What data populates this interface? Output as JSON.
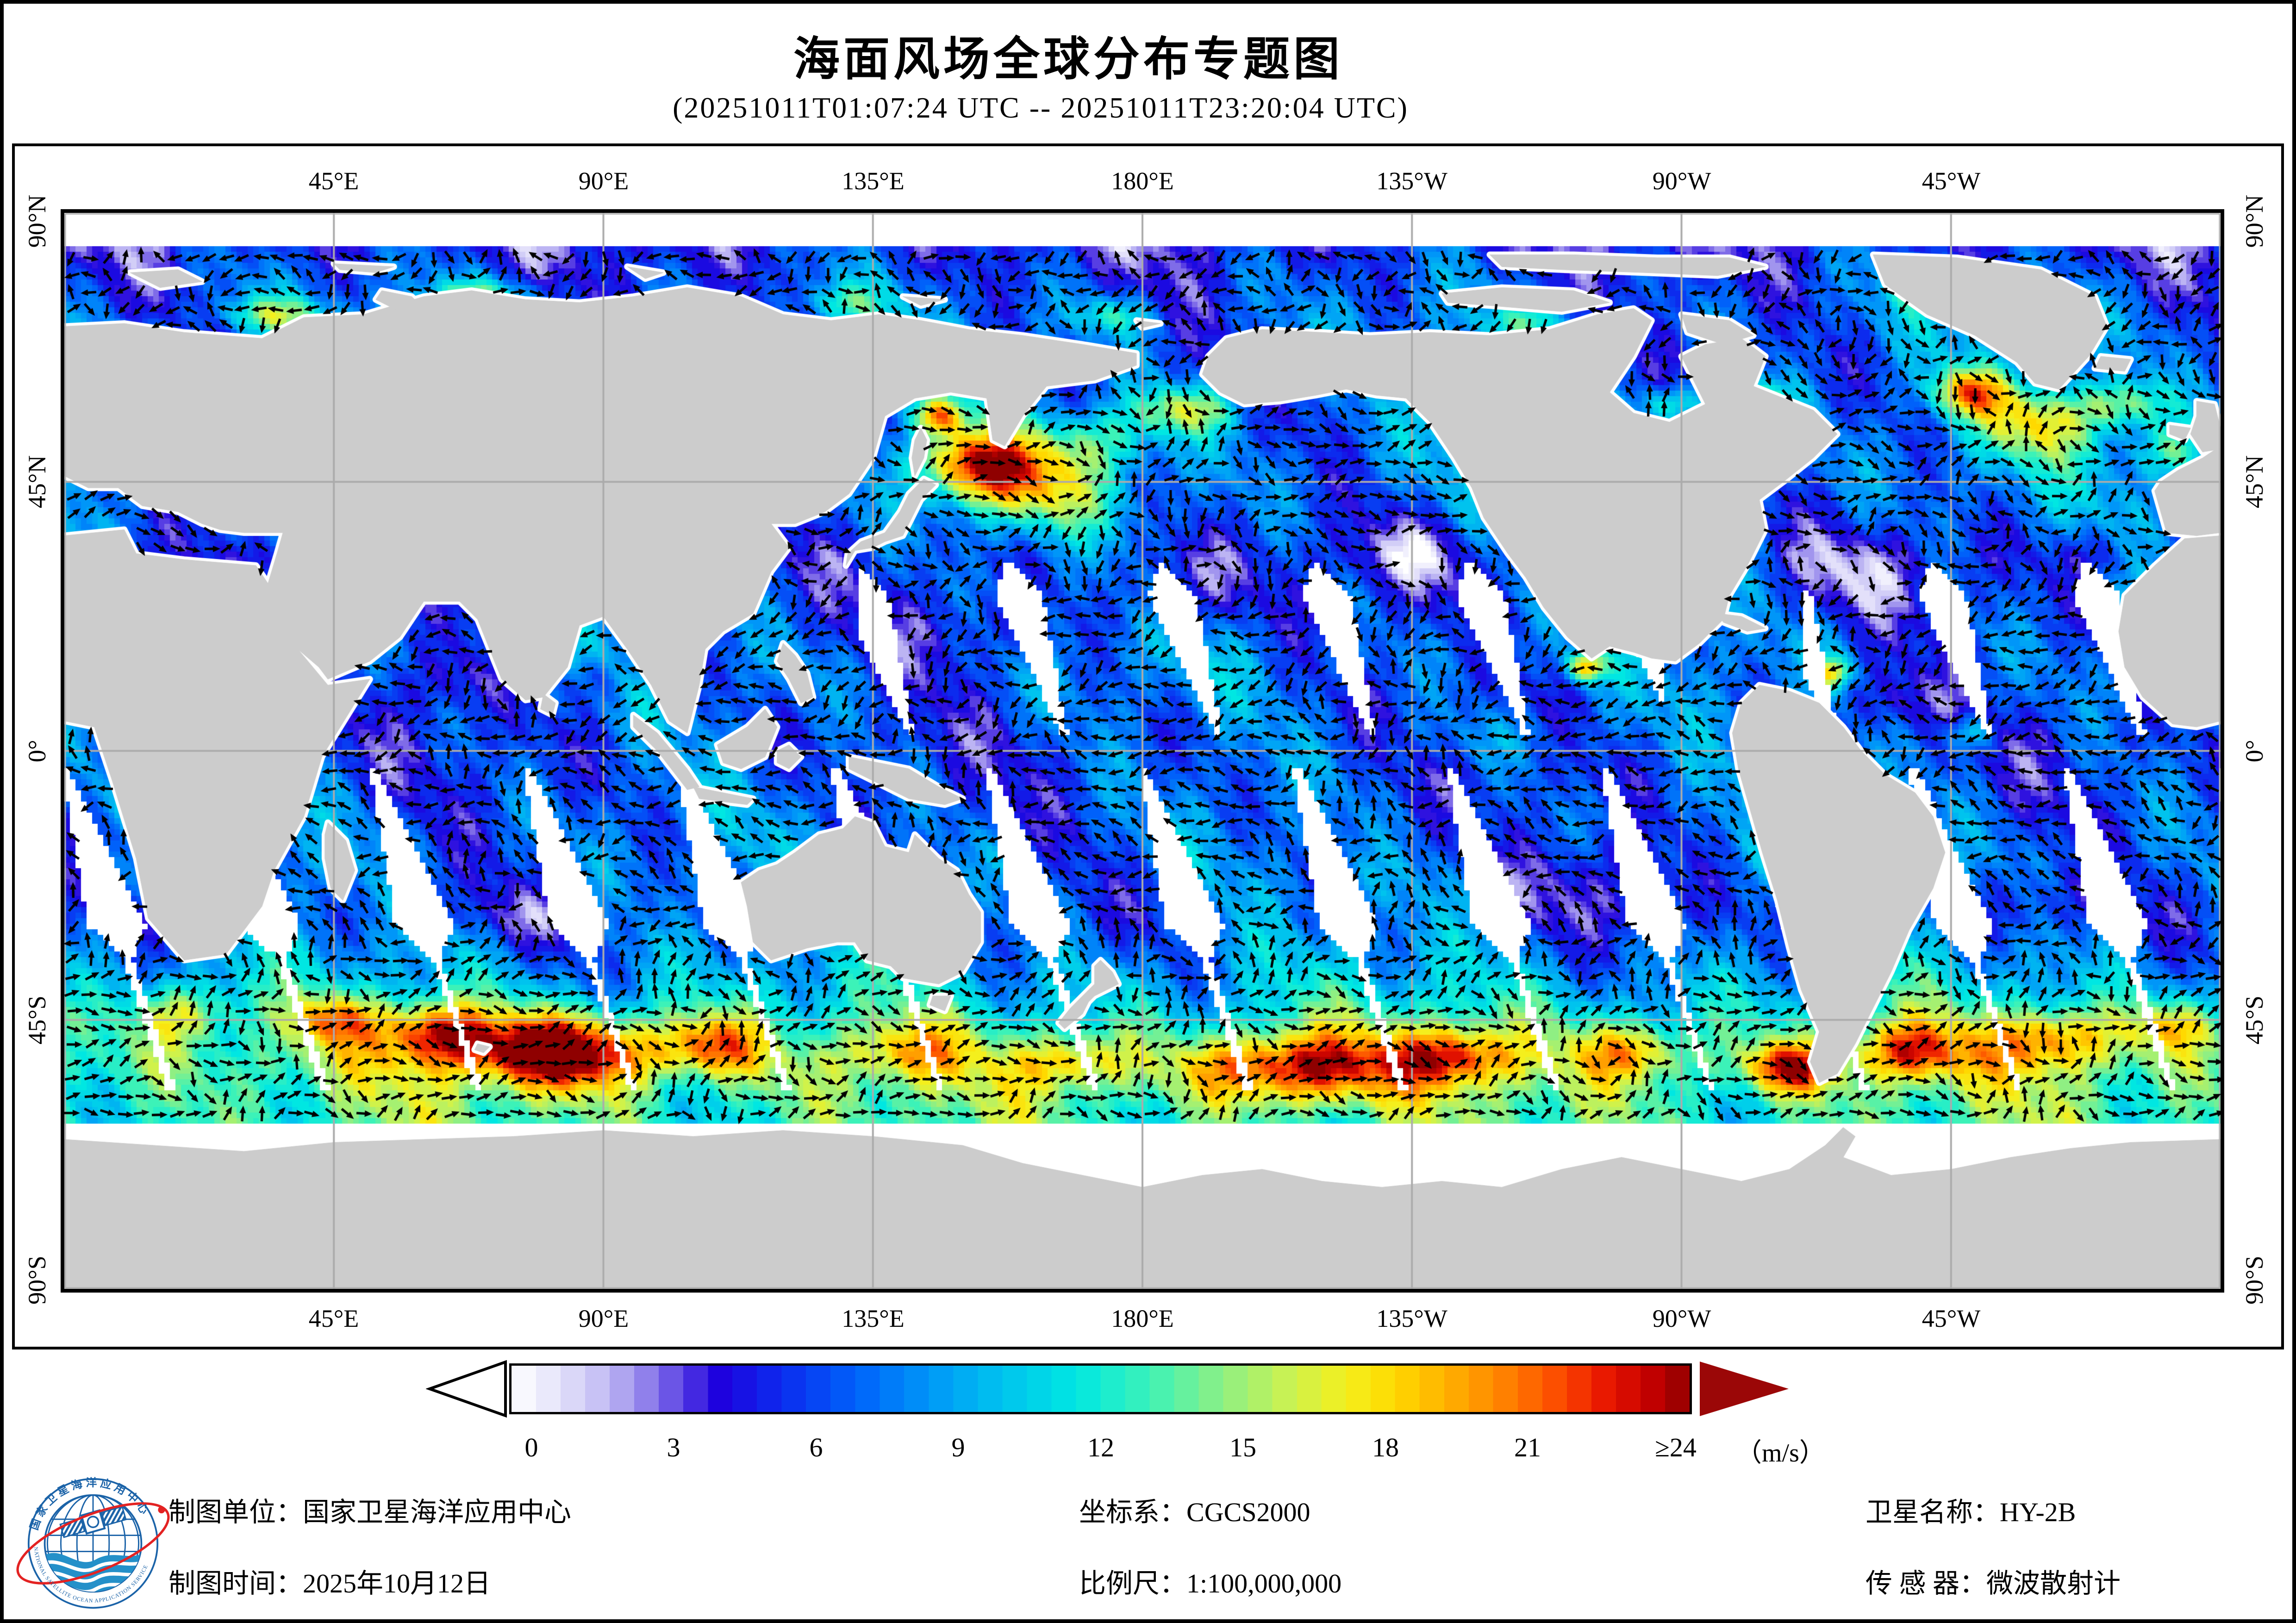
{
  "page": {
    "title": "海面风场全球分布专题图",
    "subtitle": "(20251011T01:07:24 UTC -- 20251011T23:20:04 UTC)"
  },
  "map": {
    "top_axis_labels": [
      "45°E",
      "90°E",
      "135°E",
      "180°E",
      "135°W",
      "90°W",
      "45°W"
    ],
    "bottom_axis_labels": [
      "45°E",
      "90°E",
      "135°E",
      "180°E",
      "135°W",
      "90°W",
      "45°W"
    ],
    "left_axis_labels": [
      "90°N",
      "45°N",
      "0°",
      "45°S",
      "90°S"
    ],
    "right_axis_labels": [
      "90°N",
      "45°N",
      "0°",
      "45°S",
      "90°S"
    ],
    "land_color": "#cccccc",
    "no_data_color": "#ffffff",
    "grid_color": "#ababab",
    "arrow_color": "#000000"
  },
  "colorbar": {
    "min": 0,
    "max": 24,
    "segments": 48,
    "ticks": [
      "0",
      "3",
      "6",
      "9",
      "12",
      "15",
      "18",
      "21",
      "≥24"
    ],
    "unit_label": "（m/s）",
    "right_arrow_color": "#9b0707",
    "stops": [
      {
        "v": 0,
        "c": [
          255,
          255,
          255
        ]
      },
      {
        "v": 0.8,
        "c": [
          233,
          231,
          251
        ]
      },
      {
        "v": 1.6,
        "c": [
          207,
          202,
          246
        ]
      },
      {
        "v": 2.4,
        "c": [
          168,
          157,
          239
        ]
      },
      {
        "v": 3.0,
        "c": [
          127,
          108,
          232
        ]
      },
      {
        "v": 3.6,
        "c": [
          79,
          53,
          226
        ]
      },
      {
        "v": 4.2,
        "c": [
          31,
          0,
          221
        ]
      },
      {
        "v": 5.5,
        "c": [
          12,
          43,
          238
        ]
      },
      {
        "v": 7.0,
        "c": [
          0,
          97,
          250
        ]
      },
      {
        "v": 8.5,
        "c": [
          0,
          150,
          248
        ]
      },
      {
        "v": 10.0,
        "c": [
          0,
          195,
          238
        ]
      },
      {
        "v": 11.5,
        "c": [
          0,
          231,
          226
        ]
      },
      {
        "v": 13.0,
        "c": [
          60,
          242,
          184
        ]
      },
      {
        "v": 14.5,
        "c": [
          143,
          239,
          131
        ]
      },
      {
        "v": 15.8,
        "c": [
          201,
          242,
          83
        ]
      },
      {
        "v": 17.0,
        "c": [
          244,
          239,
          29
        ]
      },
      {
        "v": 18.0,
        "c": [
          255,
          217,
          0
        ]
      },
      {
        "v": 19.2,
        "c": [
          255,
          171,
          0
        ]
      },
      {
        "v": 20.4,
        "c": [
          255,
          122,
          0
        ]
      },
      {
        "v": 21.4,
        "c": [
          252,
          71,
          0
        ]
      },
      {
        "v": 22.3,
        "c": [
          232,
          22,
          0
        ]
      },
      {
        "v": 23.2,
        "c": [
          195,
          0,
          0
        ]
      },
      {
        "v": 24.0,
        "c": [
          143,
          0,
          0
        ]
      }
    ]
  },
  "footer": {
    "items": [
      {
        "label": "制图单位：",
        "value": "国家卫星海洋应用中心"
      },
      {
        "label": "制图时间：",
        "value": "2025年10月12日"
      },
      {
        "label": "坐标系：",
        "value": "CGCS2000"
      },
      {
        "label": "比例尺：",
        "value": "1:100,000,000"
      },
      {
        "label": "卫星名称：",
        "value": "HY-2B"
      },
      {
        "label": "传 感 器：",
        "value": "微波散射计"
      }
    ]
  },
  "logo": {
    "ring_text_cn": "国家卫星海洋应用中心",
    "ring_text_en": "NATIONAL SATELLITE OCEAN APPLICATION SERVICE",
    "ring_color": "#1b63a8",
    "wave_color": "#2490c9",
    "orbit_color": "#e32222"
  },
  "chart_data": {
    "type": "heatmap",
    "subtype": "vector_field_wind_map",
    "title": "海面风场全球分布专题图",
    "time_range_utc": [
      "20251011T01:07:24",
      "20251011T23:20:04"
    ],
    "variable": "sea surface wind speed and direction",
    "unit": "m/s",
    "projection": "equirectangular",
    "lon_range_deg_east": [
      0,
      360
    ],
    "lat_range": [
      -90,
      90
    ],
    "x_tick_lons": [
      45,
      90,
      135,
      180,
      225,
      270,
      315
    ],
    "x_tick_labels": [
      "45°E",
      "90°E",
      "135°E",
      "180°E",
      "135°W",
      "90°W",
      "45°W"
    ],
    "y_tick_lats": [
      90,
      45,
      0,
      -45,
      -90
    ],
    "y_tick_labels": [
      "90°N",
      "45°N",
      "0°",
      "45°S",
      "90°S"
    ],
    "colorbar_ticks": [
      0,
      3,
      6,
      9,
      12,
      15,
      18,
      21,
      24
    ],
    "colorbar_open_ended_max": true,
    "satellite": "HY-2B",
    "sensor": "微波散射计",
    "coordinate_system": "CGCS2000",
    "map_scale": "1:100,000,000",
    "grid_on": true,
    "legend_position": "bottom",
    "data_lat_limits": [
      -62.5,
      84
    ],
    "baseline_speed_by_lat": [
      [
        -62,
        13
      ],
      [
        -52,
        14
      ],
      [
        -44,
        11.5
      ],
      [
        -36,
        9
      ],
      [
        -28,
        7.2
      ],
      [
        -18,
        7.8
      ],
      [
        -10,
        7.2
      ],
      [
        -4,
        6.6
      ],
      [
        2,
        6.4
      ],
      [
        8,
        7.0
      ],
      [
        16,
        7.6
      ],
      [
        24,
        6.8
      ],
      [
        32,
        6.4
      ],
      [
        40,
        7.6
      ],
      [
        48,
        8.2
      ],
      [
        56,
        7.6
      ],
      [
        64,
        7.2
      ],
      [
        72,
        7.4
      ],
      [
        80,
        6.0
      ],
      [
        84,
        5.0
      ]
    ],
    "features_lon_lat_rx_ry_dv": [
      [
        83,
        -50,
        16,
        6,
        14
      ],
      [
        62,
        -47,
        9,
        5,
        10
      ],
      [
        45,
        -45,
        7,
        4,
        7
      ],
      [
        108,
        -49,
        8,
        5,
        8
      ],
      [
        140,
        -50,
        10,
        5,
        5
      ],
      [
        168,
        -52,
        9,
        5,
        6
      ],
      [
        205,
        -53,
        16,
        6,
        11
      ],
      [
        232,
        -51,
        10,
        5,
        9
      ],
      [
        262,
        -50,
        9,
        5,
        7
      ],
      [
        288,
        -53,
        7,
        4,
        10
      ],
      [
        308,
        -50,
        9,
        5,
        9
      ],
      [
        332,
        -48,
        10,
        5,
        8
      ],
      [
        352,
        -46,
        8,
        4,
        6
      ],
      [
        20,
        -44,
        8,
        5,
        6
      ],
      [
        152,
        48,
        9,
        6,
        13
      ],
      [
        163,
        44,
        12,
        7,
        7
      ],
      [
        146,
        56,
        4,
        3,
        10
      ],
      [
        172,
        52,
        10,
        5,
        5
      ],
      [
        187,
        57,
        9,
        4,
        8
      ],
      [
        318,
        60,
        6,
        4,
        11
      ],
      [
        330,
        55,
        10,
        6,
        8
      ],
      [
        344,
        58,
        7,
        4,
        7
      ],
      [
        352,
        50,
        6,
        4,
        5
      ],
      [
        282,
        58,
        7,
        4,
        7
      ],
      [
        268,
        58,
        5,
        3,
        6
      ],
      [
        35,
        73,
        9,
        3,
        6
      ],
      [
        70,
        76,
        10,
        3,
        6
      ],
      [
        130,
        75,
        8,
        3,
        4
      ],
      [
        175,
        73,
        6,
        3,
        5
      ],
      [
        245,
        72,
        8,
        3,
        3
      ],
      [
        310,
        77,
        6,
        3,
        4
      ],
      [
        12,
        67,
        5,
        3,
        7
      ],
      [
        65,
        12,
        9,
        6,
        -3
      ],
      [
        88,
        12,
        6,
        4,
        -2.5
      ],
      [
        150,
        20,
        12,
        7,
        -2.5
      ],
      [
        185,
        28,
        12,
        7,
        -3
      ],
      [
        225,
        33,
        10,
        6,
        -3.5
      ],
      [
        255,
        -22,
        14,
        8,
        -3
      ],
      [
        215,
        -15,
        12,
        7,
        -2
      ],
      [
        130,
        -18,
        10,
        6,
        -2
      ],
      [
        330,
        -25,
        10,
        6,
        -2.5
      ],
      [
        10,
        -15,
        8,
        5,
        -2
      ],
      [
        300,
        30,
        12,
        7,
        -3
      ],
      [
        340,
        33,
        8,
        5,
        -2.5
      ],
      [
        305,
        8,
        8,
        5,
        -3
      ],
      [
        75,
        -28,
        8,
        5,
        -2
      ],
      [
        240,
        2,
        20,
        5,
        2
      ],
      [
        254,
        14,
        3,
        2.5,
        11
      ],
      [
        295,
        13,
        3,
        2.5,
        9
      ],
      [
        318,
        3,
        4,
        3,
        6
      ]
    ]
  }
}
